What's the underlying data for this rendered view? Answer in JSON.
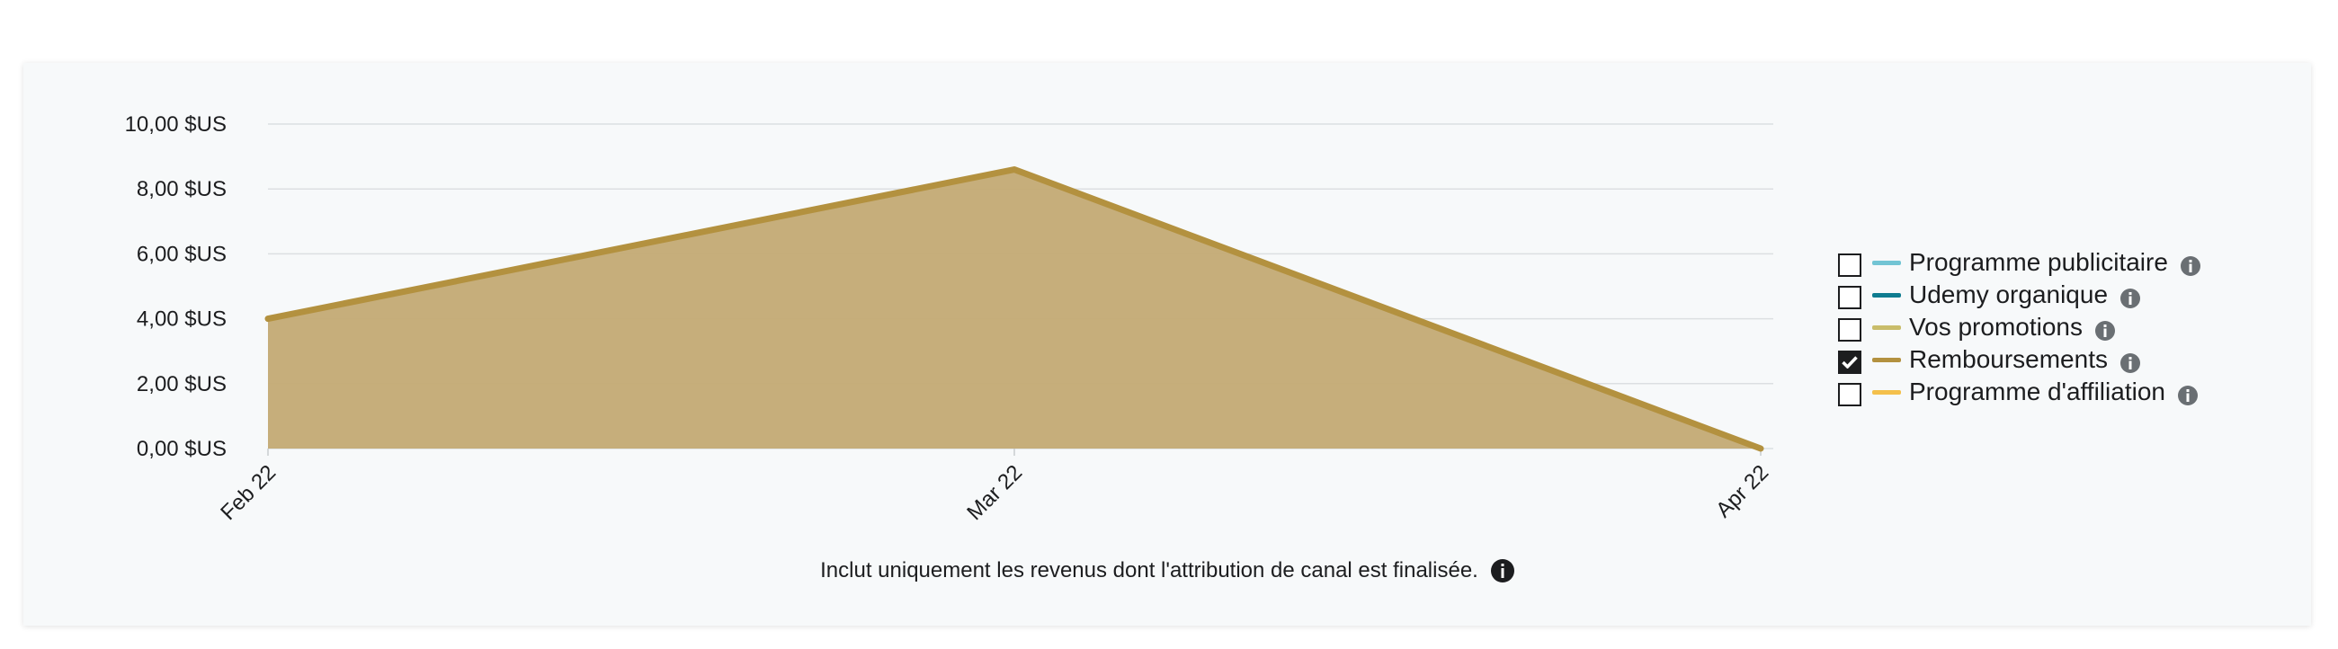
{
  "colors": {
    "card_bg": "#f7f9fa",
    "grid": "#dcdfe2",
    "area_fill": "#c3aa74",
    "area_line": "#b3913f"
  },
  "chart_data": {
    "type": "area",
    "x": [
      "Feb 22",
      "Mar 22",
      "Apr 22"
    ],
    "y_ticks": [
      "0,00 $US",
      "2,00 $US",
      "4,00 $US",
      "6,00 $US",
      "8,00 $US",
      "10,00 $US"
    ],
    "ylim": [
      0,
      10
    ],
    "grid": true,
    "legend_position": "right",
    "series": [
      {
        "name": "Remboursements",
        "values": [
          4.0,
          8.6,
          0.0
        ],
        "color": "#b3913f",
        "visible": true
      }
    ]
  },
  "legend": [
    {
      "label": "Programme publicitaire",
      "color": "#72c4d4",
      "checked": false,
      "icon": "info-icon"
    },
    {
      "label": "Udemy organique",
      "color": "#0f7c90",
      "checked": false,
      "icon": "info-icon"
    },
    {
      "label": "Vos promotions",
      "color": "#c9bd6a",
      "checked": false,
      "icon": "info-icon"
    },
    {
      "label": "Remboursements",
      "color": "#b3913f",
      "checked": true,
      "icon": "info-icon"
    },
    {
      "label": "Programme d'affiliation",
      "color": "#f4c04b",
      "checked": false,
      "icon": "info-icon"
    }
  ],
  "footnote": {
    "text": "Inclut uniquement les revenus dont l'attribution de canal est finalisée.",
    "icon": "info-icon"
  }
}
